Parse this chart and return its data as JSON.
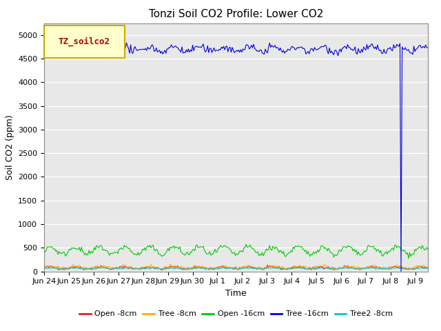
{
  "title": "Tonzi Soil CO2 Profile: Lower CO2",
  "ylabel": "Soil CO2 (ppm)",
  "xlabel": "Time",
  "legend_label": "TZ_soilco2",
  "ylim": [
    0,
    5250
  ],
  "yticks": [
    0,
    500,
    1000,
    1500,
    2000,
    2500,
    3000,
    3500,
    4000,
    4500,
    5000
  ],
  "bg_color": "#e8e8e8",
  "fig_bg_color": "#ffffff",
  "series": {
    "open_8cm": {
      "color": "#dd2222",
      "label": "Open -8cm",
      "base": 75,
      "amp": 20,
      "noise": 15
    },
    "tree_8cm": {
      "color": "#ffaa00",
      "label": "Tree -8cm",
      "base": 90,
      "amp": 25,
      "noise": 15
    },
    "open_16cm": {
      "color": "#00cc00",
      "label": "Open -16cm",
      "base": 440,
      "amp": 80,
      "noise": 30
    },
    "tree_16cm": {
      "color": "#0000dd",
      "label": "Tree -16cm",
      "base": 4700,
      "amp": 50,
      "noise": 40
    },
    "tree2_8cm": {
      "color": "#00cccc",
      "label": "Tree2 -8cm",
      "base": 60,
      "amp": 10,
      "noise": 8
    }
  },
  "n_points": 360,
  "total_days": 15.5,
  "drop_index": 334,
  "drop_value": 0,
  "xtick_labels": [
    "Jun 24",
    "Jun 25",
    "Jun 26",
    "Jun 27",
    "Jun 28",
    "Jun 29",
    "Jun 30",
    "Jul 1",
    "Jul 2",
    "Jul 3",
    "Jul 4",
    "Jul 5",
    "Jul 6",
    "Jul 7",
    "Jul 8",
    "Jul 9"
  ],
  "title_fontsize": 11,
  "axis_label_fontsize": 9,
  "tick_fontsize": 8,
  "legend_box_color": "#ffffcc",
  "legend_box_edge": "#ccaa00",
  "legend_text_color": "#aa0000"
}
